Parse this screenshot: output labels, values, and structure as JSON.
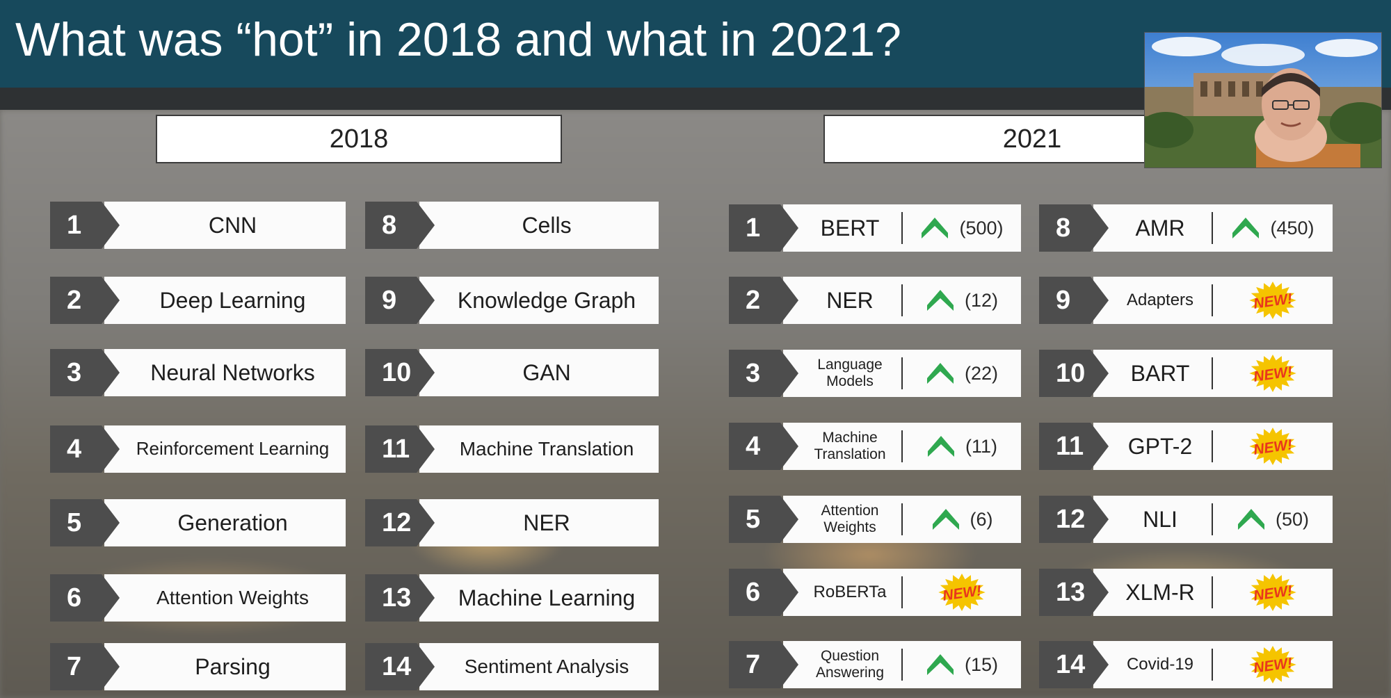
{
  "slide": {
    "title": "What was “hot” in 2018 and what in 2021?"
  },
  "columns": {
    "y2018": "2018",
    "y2021": "2021"
  },
  "list_2018_left": [
    {
      "rank": "1",
      "label": "CNN"
    },
    {
      "rank": "2",
      "label": "Deep Learning"
    },
    {
      "rank": "3",
      "label": "Neural Networks"
    },
    {
      "rank": "4",
      "label": "Reinforcement Learning"
    },
    {
      "rank": "5",
      "label": "Generation"
    },
    {
      "rank": "6",
      "label": "Attention Weights"
    },
    {
      "rank": "7",
      "label": "Parsing"
    }
  ],
  "list_2018_right": [
    {
      "rank": "8",
      "label": "Cells"
    },
    {
      "rank": "9",
      "label": "Knowledge Graph"
    },
    {
      "rank": "10",
      "label": "GAN"
    },
    {
      "rank": "11",
      "label": "Machine Translation"
    },
    {
      "rank": "12",
      "label": "NER"
    },
    {
      "rank": "13",
      "label": "Machine Learning"
    },
    {
      "rank": "14",
      "label": "Sentiment Analysis"
    }
  ],
  "list_2021_left": [
    {
      "rank": "1",
      "label": "BERT",
      "trend": "up",
      "change": "(500)"
    },
    {
      "rank": "2",
      "label": "NER",
      "trend": "up",
      "change": "(12)"
    },
    {
      "rank": "3",
      "label": "Language\nModels",
      "trend": "up",
      "change": "(22)"
    },
    {
      "rank": "4",
      "label": "Machine\nTranslation",
      "trend": "up",
      "change": "(11)"
    },
    {
      "rank": "5",
      "label": "Attention\nWeights",
      "trend": "up",
      "change": "(6)"
    },
    {
      "rank": "6",
      "label": "RoBERTa",
      "trend": "new",
      "change": "NEW!"
    },
    {
      "rank": "7",
      "label": "Question\nAnswering",
      "trend": "up",
      "change": "(15)"
    }
  ],
  "list_2021_right": [
    {
      "rank": "8",
      "label": "AMR",
      "trend": "up",
      "change": "(450)"
    },
    {
      "rank": "9",
      "label": "Adapters",
      "trend": "new",
      "change": "NEW!"
    },
    {
      "rank": "10",
      "label": "BART",
      "trend": "new",
      "change": "NEW!"
    },
    {
      "rank": "11",
      "label": "GPT-2",
      "trend": "new",
      "change": "NEW!"
    },
    {
      "rank": "12",
      "label": "NLI",
      "trend": "up",
      "change": "(50)"
    },
    {
      "rank": "13",
      "label": "XLM-R",
      "trend": "new",
      "change": "NEW!"
    },
    {
      "rank": "14",
      "label": "Covid-19",
      "trend": "new",
      "change": "NEW!"
    }
  ],
  "icons": {
    "trend_up": "up-arrow-icon",
    "new_badge": "new-burst-icon"
  },
  "colors": {
    "title_bar": "#17495c",
    "rank_badge": "#4d4d4d",
    "trend_up": "#2fa84f",
    "new_badge_fill": "#f5c400",
    "new_badge_text": "#e8361e"
  }
}
